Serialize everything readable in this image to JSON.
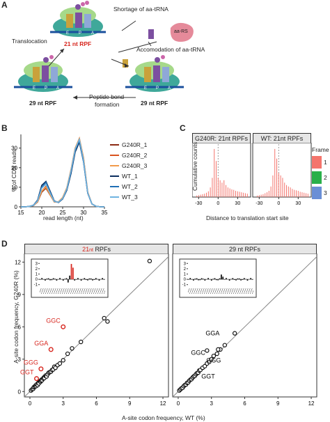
{
  "panelA": {
    "letter": "A",
    "shortage": "Shortage of aa-tRNA",
    "aars": "aa-RS",
    "accommodation": "Accomodation of aa-tRNA",
    "translocation": "Translocation",
    "peptide_bond_1": "Peptide bond",
    "peptide_bond_2": "formation",
    "rpf21": "21 nt RPF",
    "rpf29_left": "29 nt RPF",
    "rpf29_right": "29 nt RPF",
    "sites": [
      "E",
      "P",
      "A"
    ]
  },
  "panelB": {
    "letter": "B",
    "chart_data": {
      "type": "line",
      "xlabel": "read length (nt)",
      "ylabel": "% of CDS reads",
      "x_ticks": [
        "15",
        "20",
        "25",
        "30",
        "35"
      ],
      "y_ticks": [
        "0",
        "10",
        "20",
        "30"
      ],
      "xlim": [
        15,
        35
      ],
      "ylim": [
        0,
        37
      ],
      "x": [
        15,
        16,
        17,
        18,
        19,
        20,
        21,
        22,
        23,
        24,
        25,
        26,
        27,
        28,
        29,
        30,
        31,
        32,
        33,
        34,
        35
      ],
      "series": [
        {
          "name": "G240R_1",
          "color": "#8b2a12",
          "values": [
            0,
            0,
            0.2,
            0.6,
            2.5,
            7.5,
            9.5,
            6,
            2.5,
            2.5,
            4.5,
            9,
            18,
            29,
            34,
            24,
            7,
            1.5,
            0.3,
            0,
            0
          ]
        },
        {
          "name": "G240R_2",
          "color": "#d9531e",
          "values": [
            0,
            0,
            0.2,
            0.6,
            2.5,
            8,
            10.5,
            6.5,
            2.5,
            2.6,
            4.7,
            9.5,
            19,
            30,
            35,
            25,
            7.5,
            1.5,
            0.3,
            0,
            0
          ]
        },
        {
          "name": "G240R_3",
          "color": "#f29a4a",
          "values": [
            0,
            0,
            0.2,
            0.6,
            2.6,
            8,
            10,
            6.2,
            2.5,
            2.6,
            4.8,
            9.8,
            19,
            30,
            35,
            25,
            7.5,
            1.5,
            0.3,
            0,
            0
          ]
        },
        {
          "name": "WT_1",
          "color": "#0b2e5e",
          "values": [
            0,
            0,
            0.2,
            0.8,
            3.5,
            11,
            13,
            8,
            3,
            2.2,
            4,
            8.5,
            17,
            28,
            33,
            23,
            7,
            1.5,
            0.3,
            0,
            0
          ]
        },
        {
          "name": "WT_2",
          "color": "#1f6fb5",
          "values": [
            0,
            0,
            0.2,
            0.8,
            3.2,
            10,
            12.5,
            7.5,
            2.8,
            2.3,
            4.2,
            9,
            18,
            29,
            34,
            23,
            7,
            1.5,
            0.3,
            0,
            0
          ]
        },
        {
          "name": "WT_3",
          "color": "#6fb3e0",
          "values": [
            0,
            0,
            0.2,
            0.7,
            3,
            9.5,
            11.5,
            7,
            2.7,
            2.4,
            4.3,
            9.2,
            18.5,
            29.5,
            34.5,
            24,
            7.2,
            1.5,
            0.3,
            0,
            0
          ]
        }
      ]
    }
  },
  "panelC": {
    "letter": "C",
    "chart_data": {
      "type": "bar",
      "xlabel": "Distance to translation start site",
      "ylabel": "Cumulative counts",
      "facets": [
        "G240R: 21nt RPFs",
        "WT: 21nt RPFs"
      ],
      "x_ticks": [
        "-30",
        "0",
        "30"
      ],
      "legend_title": "Frame",
      "legend": [
        {
          "label": "1",
          "color": "#f4746c"
        },
        {
          "label": "2",
          "color": "#2ab04a"
        },
        {
          "label": "3",
          "color": "#6a8fd6"
        }
      ],
      "x": [
        -33,
        -30,
        -27,
        -24,
        -21,
        -18,
        -15,
        -12,
        -9,
        -6,
        -3,
        0,
        3,
        6,
        9,
        12,
        15,
        18,
        21,
        24,
        27,
        30,
        33,
        36,
        39,
        42,
        45
      ],
      "G240R": [
        0.3,
        0.4,
        0.5,
        0.6,
        0.7,
        0.9,
        1.2,
        2,
        4,
        10,
        7.5,
        4,
        3.5,
        3,
        3.5,
        2.5,
        2,
        1.8,
        1.6,
        1.5,
        1.3,
        1.2,
        1.1,
        1,
        0.9,
        0.8,
        0.7
      ],
      "WT": [
        0.3,
        0.4,
        0.5,
        0.6,
        0.8,
        1,
        1.3,
        2.2,
        4.5,
        10,
        8,
        5,
        4.5,
        4,
        3,
        2.5,
        2.2,
        2,
        1.7,
        1.5,
        1.4,
        1.3,
        1.1,
        1,
        0.9,
        0.8,
        0.7
      ]
    }
  },
  "panelD": {
    "letter": "D",
    "xlabel": "A-site codon frequency, WT (%)",
    "ylabel": "A-site codon frequency, G240R (%)",
    "facet_left_num": "21",
    "facet_left_unit": "nt",
    "facet_left_tail": "RPFs",
    "facet_right": "29 nt RPFs",
    "ticks": [
      "0",
      "3",
      "6",
      "9",
      "12"
    ],
    "inset_ticks": [
      "3",
      "2",
      "1",
      "0",
      "-1"
    ],
    "chart_data": {
      "type": "scatter",
      "xlim": [
        -0.5,
        12.5
      ],
      "ylim": [
        -0.5,
        12.8
      ],
      "left_points": [
        [
          0.1,
          0.1
        ],
        [
          0.2,
          0.2
        ],
        [
          0.3,
          0.25
        ],
        [
          0.35,
          0.4
        ],
        [
          0.45,
          0.45
        ],
        [
          0.5,
          0.55
        ],
        [
          0.55,
          0.5
        ],
        [
          0.6,
          0.65
        ],
        [
          0.7,
          0.6
        ],
        [
          0.75,
          0.8
        ],
        [
          0.8,
          0.75
        ],
        [
          0.9,
          0.95
        ],
        [
          0.95,
          0.9
        ],
        [
          1.0,
          1.0
        ],
        [
          1.05,
          1.1
        ],
        [
          1.1,
          1.05
        ],
        [
          1.2,
          1.2
        ],
        [
          1.25,
          1.3
        ],
        [
          1.3,
          1.25
        ],
        [
          1.4,
          1.45
        ],
        [
          1.45,
          1.5
        ],
        [
          1.5,
          1.4
        ],
        [
          1.6,
          1.6
        ],
        [
          1.7,
          1.75
        ],
        [
          1.8,
          1.8
        ],
        [
          1.9,
          1.85
        ],
        [
          2.0,
          2.0
        ],
        [
          2.1,
          2.05
        ],
        [
          2.2,
          2.3
        ],
        [
          2.3,
          2.2
        ],
        [
          2.5,
          2.45
        ],
        [
          2.7,
          2.6
        ],
        [
          3.0,
          2.9
        ],
        [
          3.4,
          3.5
        ],
        [
          3.8,
          4.0
        ],
        [
          4.6,
          4.6
        ],
        [
          6.7,
          6.8
        ],
        [
          7.0,
          6.5
        ],
        [
          10.8,
          12.1
        ]
      ],
      "left_highlights": [
        {
          "label": "GGC",
          "x": 3.0,
          "y": 6.0
        },
        {
          "label": "GGA",
          "x": 1.9,
          "y": 3.9
        },
        {
          "label": "GGG",
          "x": 1.0,
          "y": 2.1
        },
        {
          "label": "GGT",
          "x": 0.6,
          "y": 1.2
        }
      ],
      "right_points": [
        [
          0.1,
          0.1
        ],
        [
          0.2,
          0.2
        ],
        [
          0.3,
          0.3
        ],
        [
          0.4,
          0.35
        ],
        [
          0.5,
          0.5
        ],
        [
          0.6,
          0.6
        ],
        [
          0.7,
          0.65
        ],
        [
          0.8,
          0.8
        ],
        [
          0.9,
          0.85
        ],
        [
          1.0,
          1.0
        ],
        [
          1.1,
          1.1
        ],
        [
          1.2,
          1.15
        ],
        [
          1.3,
          1.3
        ],
        [
          1.4,
          1.4
        ],
        [
          1.5,
          1.45
        ],
        [
          1.6,
          1.6
        ],
        [
          1.7,
          1.7
        ],
        [
          1.8,
          1.75
        ],
        [
          1.9,
          1.95
        ],
        [
          2.0,
          2.0
        ],
        [
          2.2,
          2.2
        ],
        [
          2.4,
          2.35
        ],
        [
          2.6,
          2.6
        ],
        [
          2.8,
          2.75
        ],
        [
          3.0,
          3.0
        ],
        [
          3.2,
          3.3
        ],
        [
          3.5,
          3.5
        ],
        [
          3.8,
          3.9
        ],
        [
          4.2,
          4.3
        ],
        [
          5.1,
          5.4
        ],
        [
          3.6,
          3.9
        ],
        [
          2.6,
          3.8
        ]
      ],
      "right_labels": [
        {
          "label": "GGC",
          "x": 1.8,
          "y": 3.4
        },
        {
          "label": "GGA",
          "x": 3.1,
          "y": 5.2
        },
        {
          "label": "GGG",
          "x": 3.2,
          "y": 2.7
        },
        {
          "label": "GGT",
          "x": 2.7,
          "y": 1.2
        }
      ]
    }
  }
}
